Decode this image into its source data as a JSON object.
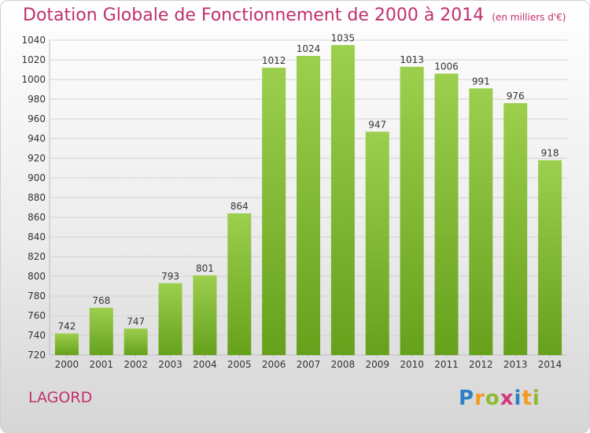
{
  "title": "Dotation Globale de Fonctionnement de 2000 à 2014",
  "subtitle": "(en milliers d'€)",
  "commune": "LAGORD",
  "logo": {
    "text": "Proxiti",
    "letters": [
      {
        "char": "P",
        "color": "#2f7fc9"
      },
      {
        "char": "r",
        "color": "#f29a1d"
      },
      {
        "char": "o",
        "color": "#8cbb32"
      },
      {
        "char": "x",
        "color": "#d6367a"
      },
      {
        "char": "i",
        "color": "#2f7fc9"
      },
      {
        "char": "t",
        "color": "#f29a1d"
      },
      {
        "char": "i",
        "color": "#8cbb32"
      }
    ]
  },
  "colors": {
    "title": "#c0306e",
    "bar_top": "#9ccf4e",
    "bar_bottom": "#66a11c",
    "grid": "#d2d2d2",
    "axis_text": "#333333"
  },
  "chart_data": {
    "type": "bar",
    "title": "Dotation Globale de Fonctionnement de 2000 à 2014",
    "subtitle": "(en milliers d'€)",
    "xlabel": "",
    "ylabel": "",
    "categories": [
      "2000",
      "2001",
      "2002",
      "2003",
      "2004",
      "2005",
      "2006",
      "2007",
      "2008",
      "2009",
      "2010",
      "2011",
      "2012",
      "2013",
      "2014"
    ],
    "values": [
      742,
      768,
      747,
      793,
      801,
      864,
      1012,
      1024,
      1035,
      947,
      1013,
      1006,
      991,
      976,
      918
    ],
    "ylim": [
      720,
      1040
    ],
    "yticks": [
      720,
      740,
      760,
      780,
      800,
      820,
      840,
      860,
      880,
      900,
      920,
      940,
      960,
      980,
      1000,
      1020,
      1040
    ],
    "grid": true,
    "legend": "none"
  }
}
